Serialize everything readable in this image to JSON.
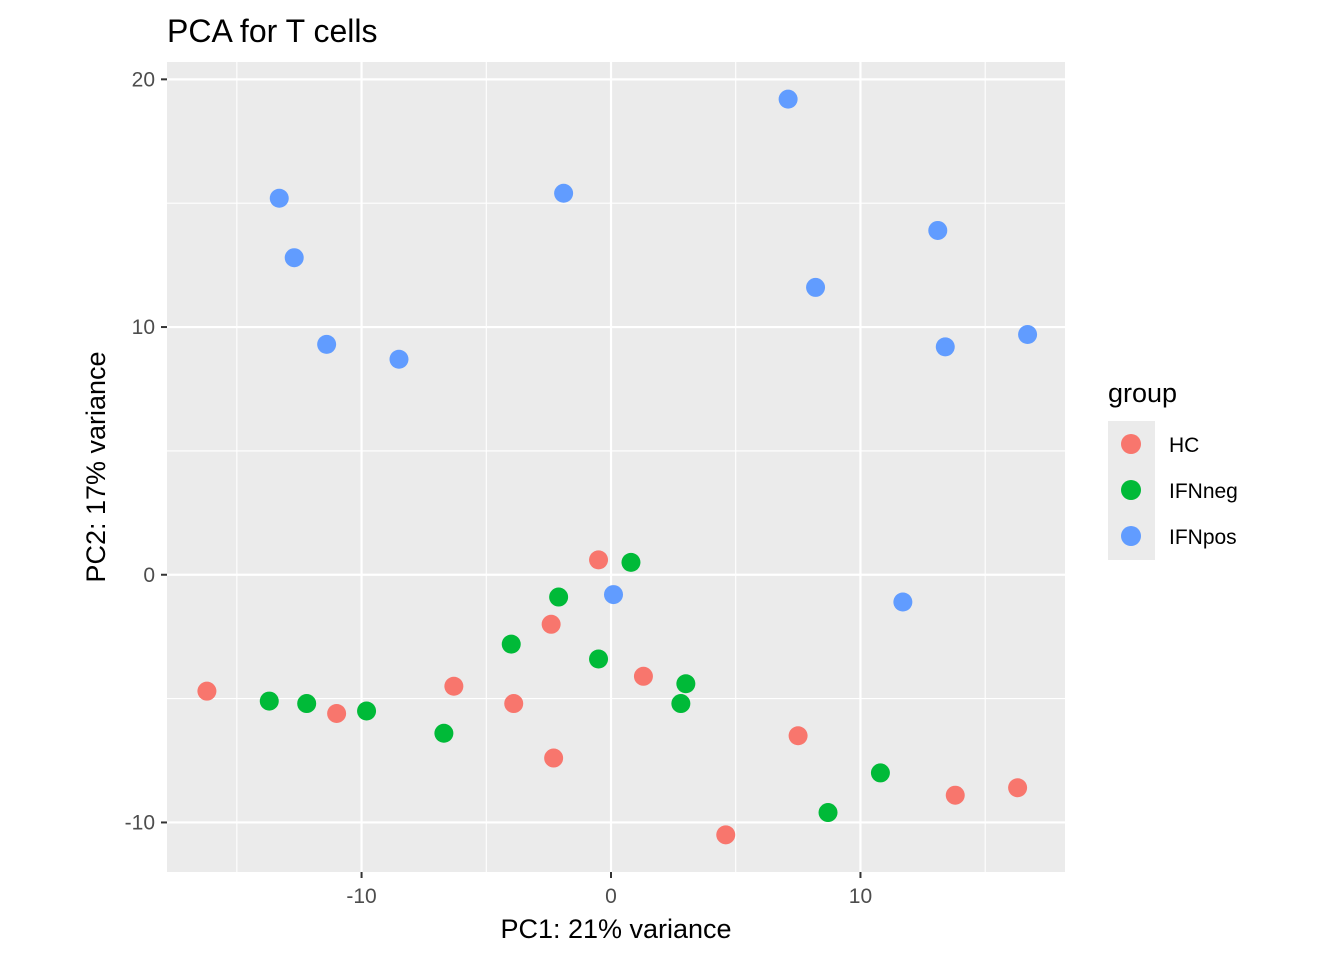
{
  "chart_data": {
    "type": "scatter",
    "title": "PCA for T cells",
    "xlabel": "PC1: 21% variance",
    "ylabel": "PC2: 17% variance",
    "xlim": [
      -17.8,
      18.2
    ],
    "ylim": [
      -12.0,
      20.7
    ],
    "x_ticks": [
      -10,
      0,
      10
    ],
    "y_ticks": [
      -10,
      0,
      10,
      20
    ],
    "x_tick_labels": [
      "-10",
      "0",
      "10"
    ],
    "y_tick_labels": [
      "-10",
      "0",
      "10",
      "20"
    ],
    "grid": true,
    "legend": {
      "title": "group",
      "position": "right"
    },
    "series": [
      {
        "name": "HC",
        "color": "#F8766D",
        "points": [
          {
            "x": -16.2,
            "y": -4.7
          },
          {
            "x": -11.0,
            "y": -5.6
          },
          {
            "x": -6.3,
            "y": -4.5
          },
          {
            "x": -3.9,
            "y": -5.2
          },
          {
            "x": -2.4,
            "y": -2.0
          },
          {
            "x": -2.3,
            "y": -7.4
          },
          {
            "x": -0.5,
            "y": 0.6
          },
          {
            "x": 1.3,
            "y": -4.1
          },
          {
            "x": 4.6,
            "y": -10.5
          },
          {
            "x": 7.5,
            "y": -6.5
          },
          {
            "x": 13.8,
            "y": -8.9
          },
          {
            "x": 16.3,
            "y": -8.6
          }
        ]
      },
      {
        "name": "IFNneg",
        "color": "#00BA38",
        "points": [
          {
            "x": -13.7,
            "y": -5.1
          },
          {
            "x": -12.2,
            "y": -5.2
          },
          {
            "x": -9.8,
            "y": -5.5
          },
          {
            "x": -6.7,
            "y": -6.4
          },
          {
            "x": -4.0,
            "y": -2.8
          },
          {
            "x": -2.1,
            "y": -0.9
          },
          {
            "x": -0.5,
            "y": -3.4
          },
          {
            "x": 0.8,
            "y": 0.5
          },
          {
            "x": 2.8,
            "y": -5.2
          },
          {
            "x": 3.0,
            "y": -4.4
          },
          {
            "x": 8.7,
            "y": -9.6
          },
          {
            "x": 10.8,
            "y": -8.0
          }
        ]
      },
      {
        "name": "IFNpos",
        "color": "#619CFF",
        "points": [
          {
            "x": -13.3,
            "y": 15.2
          },
          {
            "x": -12.7,
            "y": 12.8
          },
          {
            "x": -11.4,
            "y": 9.3
          },
          {
            "x": -8.5,
            "y": 8.7
          },
          {
            "x": -1.9,
            "y": 15.4
          },
          {
            "x": 0.1,
            "y": -0.8
          },
          {
            "x": 7.1,
            "y": 19.2
          },
          {
            "x": 8.2,
            "y": 11.6
          },
          {
            "x": 11.7,
            "y": -1.1
          },
          {
            "x": 13.1,
            "y": 13.9
          },
          {
            "x": 13.4,
            "y": 9.2
          },
          {
            "x": 16.7,
            "y": 9.7
          }
        ]
      }
    ]
  }
}
